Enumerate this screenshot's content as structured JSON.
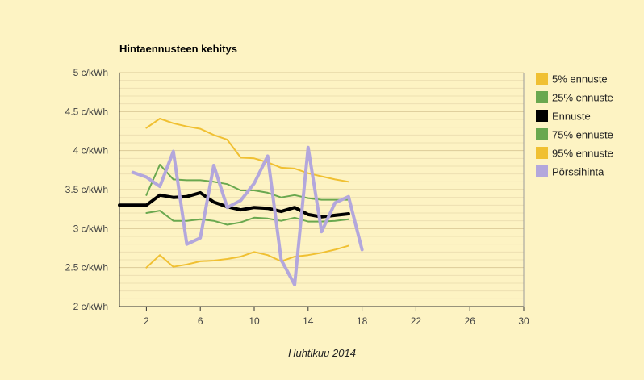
{
  "chart_data": {
    "type": "line",
    "title": "Hintaennusteen kehitys",
    "xlabel": "Huhtikuu 2014",
    "ylabel": "",
    "xlim": [
      0,
      30
    ],
    "ylim": [
      2,
      5
    ],
    "x_ticks": [
      2,
      6,
      10,
      14,
      18,
      22,
      26,
      30
    ],
    "y_ticks": [
      2,
      2.5,
      3,
      3.5,
      4,
      4.5,
      5
    ],
    "y_tick_labels": [
      "2 c/kWh",
      "2.5 c/kWh",
      "3 c/kWh",
      "3.5 c/kWh",
      "4 c/kWh",
      "4.5 c/kWh",
      "5 c/kWh"
    ],
    "grid": true,
    "legend_position": "right",
    "series": [
      {
        "name": "5% ennuste",
        "color": "#f0c032",
        "width": 2,
        "points": [
          [
            2,
            2.5
          ],
          [
            3,
            2.66
          ],
          [
            4,
            2.51
          ],
          [
            5,
            2.54
          ],
          [
            6,
            2.58
          ],
          [
            7,
            2.59
          ],
          [
            8,
            2.61
          ],
          [
            9,
            2.64
          ],
          [
            10,
            2.7
          ],
          [
            11,
            2.66
          ],
          [
            12,
            2.58
          ],
          [
            13,
            2.64
          ],
          [
            14,
            2.66
          ],
          [
            15,
            2.69
          ],
          [
            16,
            2.73
          ],
          [
            17,
            2.78
          ]
        ]
      },
      {
        "name": "25% ennuste",
        "color": "#6aa84f",
        "width": 2,
        "points": [
          [
            2,
            3.2
          ],
          [
            3,
            3.23
          ],
          [
            4,
            3.1
          ],
          [
            5,
            3.1
          ],
          [
            6,
            3.12
          ],
          [
            7,
            3.1
          ],
          [
            8,
            3.05
          ],
          [
            9,
            3.08
          ],
          [
            10,
            3.14
          ],
          [
            11,
            3.13
          ],
          [
            12,
            3.1
          ],
          [
            13,
            3.14
          ],
          [
            14,
            3.09
          ],
          [
            15,
            3.09
          ],
          [
            16,
            3.1
          ],
          [
            17,
            3.12
          ]
        ]
      },
      {
        "name": "Ennuste",
        "color": "#000000",
        "width": 4,
        "points": [
          [
            0,
            3.3
          ],
          [
            2,
            3.3
          ],
          [
            3,
            3.43
          ],
          [
            4,
            3.4
          ],
          [
            5,
            3.41
          ],
          [
            6,
            3.46
          ],
          [
            7,
            3.34
          ],
          [
            8,
            3.28
          ],
          [
            9,
            3.24
          ],
          [
            10,
            3.27
          ],
          [
            11,
            3.26
          ],
          [
            12,
            3.22
          ],
          [
            13,
            3.27
          ],
          [
            14,
            3.18
          ],
          [
            15,
            3.15
          ],
          [
            16,
            3.17
          ],
          [
            17,
            3.19
          ]
        ]
      },
      {
        "name": "75% ennuste",
        "color": "#6aa84f",
        "width": 2,
        "points": [
          [
            2,
            3.43
          ],
          [
            3,
            3.82
          ],
          [
            4,
            3.63
          ],
          [
            5,
            3.62
          ],
          [
            6,
            3.62
          ],
          [
            7,
            3.6
          ],
          [
            8,
            3.57
          ],
          [
            9,
            3.49
          ],
          [
            10,
            3.49
          ],
          [
            11,
            3.46
          ],
          [
            12,
            3.4
          ],
          [
            13,
            3.43
          ],
          [
            14,
            3.39
          ],
          [
            15,
            3.37
          ],
          [
            16,
            3.37
          ],
          [
            17,
            3.37
          ]
        ]
      },
      {
        "name": "95% ennuste",
        "color": "#f0c032",
        "width": 2,
        "points": [
          [
            2,
            4.29
          ],
          [
            3,
            4.41
          ],
          [
            4,
            4.35
          ],
          [
            5,
            4.31
          ],
          [
            6,
            4.28
          ],
          [
            7,
            4.2
          ],
          [
            8,
            4.14
          ],
          [
            9,
            3.91
          ],
          [
            10,
            3.9
          ],
          [
            11,
            3.85
          ],
          [
            12,
            3.78
          ],
          [
            13,
            3.77
          ],
          [
            14,
            3.71
          ],
          [
            15,
            3.67
          ],
          [
            16,
            3.63
          ],
          [
            17,
            3.6
          ]
        ]
      },
      {
        "name": "Pörssihinta",
        "color": "#b3a7dc",
        "width": 4,
        "points": [
          [
            1,
            3.72
          ],
          [
            2,
            3.66
          ],
          [
            3,
            3.54
          ],
          [
            4,
            3.99
          ],
          [
            5,
            2.8
          ],
          [
            6,
            2.88
          ],
          [
            7,
            3.81
          ],
          [
            8,
            3.27
          ],
          [
            9,
            3.36
          ],
          [
            10,
            3.58
          ],
          [
            11,
            3.93
          ],
          [
            12,
            2.6
          ],
          [
            13,
            2.28
          ],
          [
            14,
            4.04
          ],
          [
            15,
            2.96
          ],
          [
            16,
            3.33
          ],
          [
            17,
            3.41
          ],
          [
            18,
            2.73
          ]
        ]
      }
    ]
  }
}
